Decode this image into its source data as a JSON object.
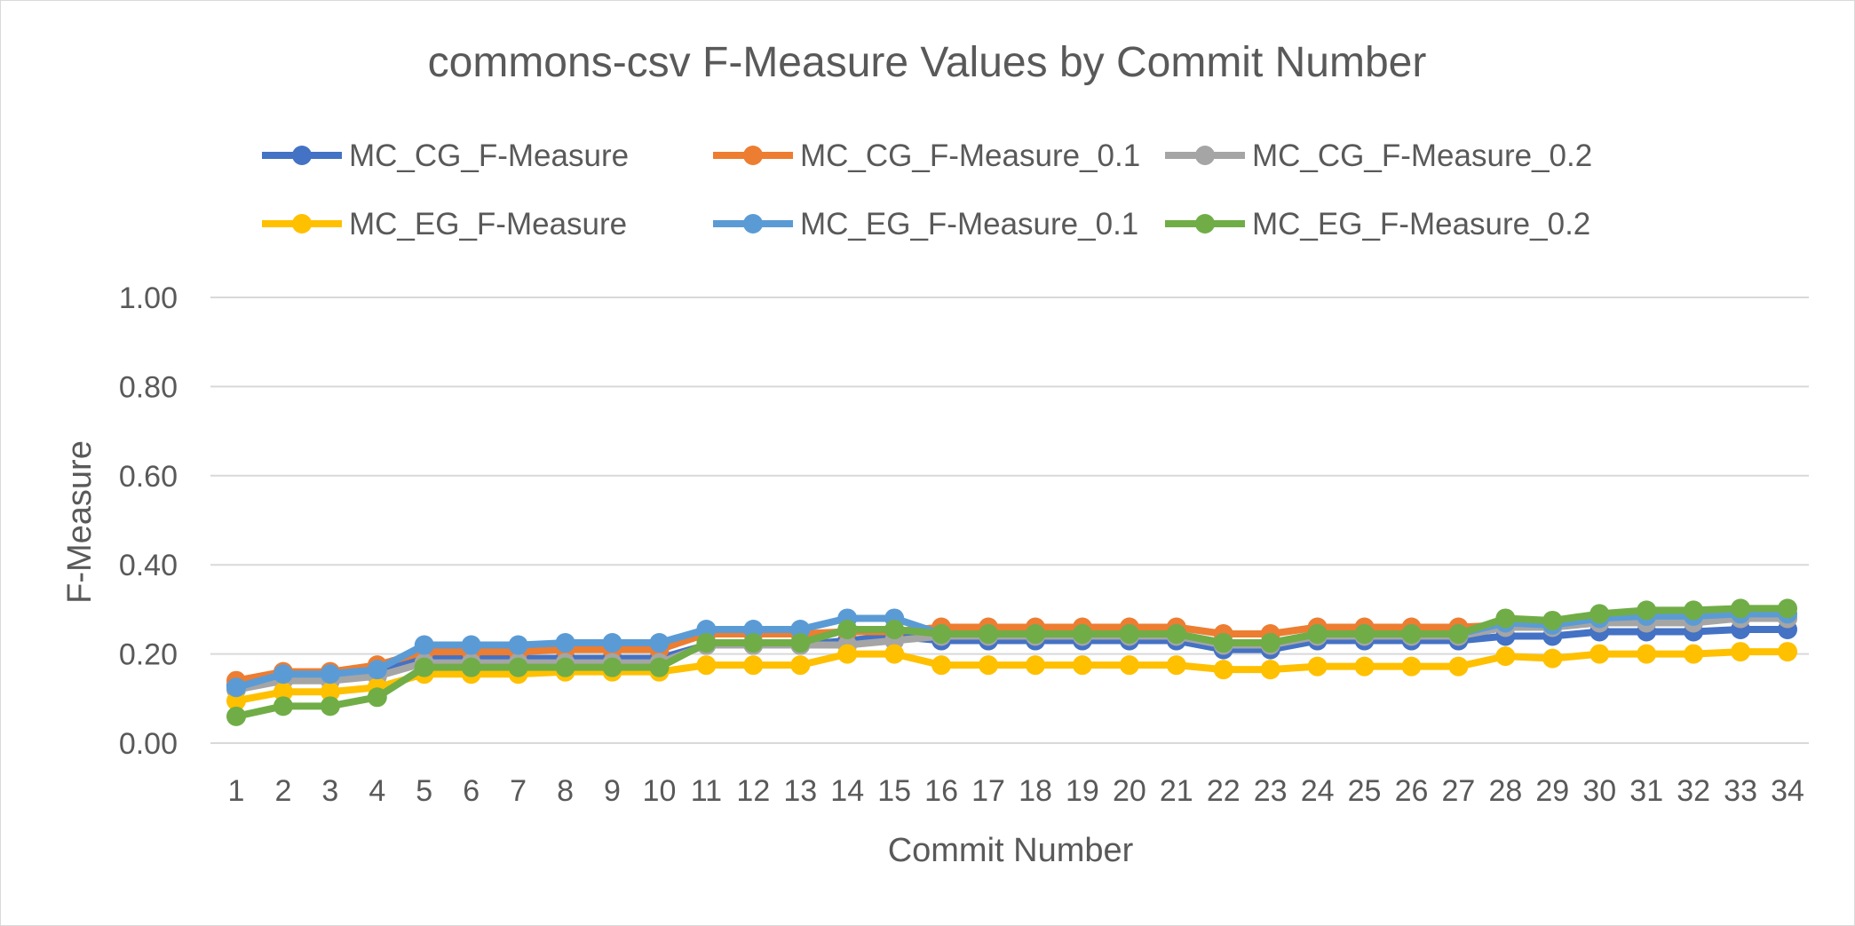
{
  "chart_data": {
    "type": "line",
    "title": "commons-csv F-Measure Values by Commit Number",
    "xlabel": "Commit Number",
    "ylabel": "F-Measure",
    "ylim": [
      0,
      1
    ],
    "y_ticks": [
      "0.00",
      "0.20",
      "0.40",
      "0.60",
      "0.80",
      "1.00"
    ],
    "grid": true,
    "legend_position": "top",
    "x": [
      1,
      2,
      3,
      4,
      5,
      6,
      7,
      8,
      9,
      10,
      11,
      12,
      13,
      14,
      15,
      16,
      17,
      18,
      19,
      20,
      21,
      22,
      23,
      24,
      25,
      26,
      27,
      28,
      29,
      30,
      31,
      32,
      33,
      34
    ],
    "series": [
      {
        "name": "MC_CG_F-Measure",
        "color": "#4472C4",
        "values": [
          0.13,
          0.15,
          0.15,
          0.16,
          0.19,
          0.19,
          0.19,
          0.19,
          0.19,
          0.19,
          0.22,
          0.22,
          0.22,
          0.23,
          0.24,
          0.23,
          0.23,
          0.23,
          0.23,
          0.23,
          0.23,
          0.21,
          0.21,
          0.23,
          0.23,
          0.23,
          0.23,
          0.24,
          0.24,
          0.25,
          0.25,
          0.25,
          0.255,
          0.255
        ]
      },
      {
        "name": "MC_CG_F-Measure_0.1",
        "color": "#ED7D31",
        "values": [
          0.14,
          0.16,
          0.16,
          0.175,
          0.205,
          0.205,
          0.205,
          0.21,
          0.21,
          0.21,
          0.245,
          0.245,
          0.245,
          0.25,
          0.25,
          0.26,
          0.26,
          0.26,
          0.26,
          0.26,
          0.26,
          0.245,
          0.245,
          0.26,
          0.26,
          0.26,
          0.26,
          0.265,
          0.265,
          0.275,
          0.275,
          0.275,
          0.28,
          0.28
        ]
      },
      {
        "name": "MC_CG_F-Measure_0.2",
        "color": "#A5A5A5",
        "values": [
          0.12,
          0.14,
          0.14,
          0.15,
          0.18,
          0.18,
          0.18,
          0.18,
          0.18,
          0.18,
          0.22,
          0.22,
          0.22,
          0.22,
          0.23,
          0.24,
          0.24,
          0.24,
          0.24,
          0.24,
          0.24,
          0.22,
          0.22,
          0.24,
          0.24,
          0.24,
          0.24,
          0.26,
          0.26,
          0.27,
          0.27,
          0.27,
          0.28,
          0.28
        ]
      },
      {
        "name": "MC_EG_F-Measure",
        "color": "#FFC000",
        "values": [
          0.095,
          0.115,
          0.115,
          0.125,
          0.155,
          0.155,
          0.155,
          0.16,
          0.16,
          0.16,
          0.175,
          0.175,
          0.175,
          0.2,
          0.2,
          0.175,
          0.175,
          0.175,
          0.175,
          0.175,
          0.175,
          0.165,
          0.165,
          0.172,
          0.172,
          0.172,
          0.172,
          0.195,
          0.19,
          0.2,
          0.2,
          0.2,
          0.205,
          0.205
        ]
      },
      {
        "name": "MC_EG_F-Measure_0.1",
        "color": "#5B9BD5",
        "values": [
          0.125,
          0.155,
          0.155,
          0.165,
          0.22,
          0.22,
          0.22,
          0.225,
          0.225,
          0.225,
          0.255,
          0.255,
          0.255,
          0.28,
          0.28,
          0.245,
          0.245,
          0.245,
          0.245,
          0.245,
          0.245,
          0.225,
          0.225,
          0.245,
          0.245,
          0.245,
          0.245,
          0.27,
          0.265,
          0.28,
          0.285,
          0.285,
          0.29,
          0.29
        ]
      },
      {
        "name": "MC_EG_F-Measure_0.2",
        "color": "#70AD47",
        "values": [
          0.06,
          0.083,
          0.083,
          0.103,
          0.17,
          0.17,
          0.17,
          0.17,
          0.17,
          0.17,
          0.225,
          0.225,
          0.225,
          0.255,
          0.255,
          0.245,
          0.245,
          0.245,
          0.245,
          0.245,
          0.245,
          0.225,
          0.225,
          0.245,
          0.245,
          0.245,
          0.245,
          0.28,
          0.275,
          0.29,
          0.298,
          0.298,
          0.302,
          0.302
        ]
      }
    ]
  }
}
